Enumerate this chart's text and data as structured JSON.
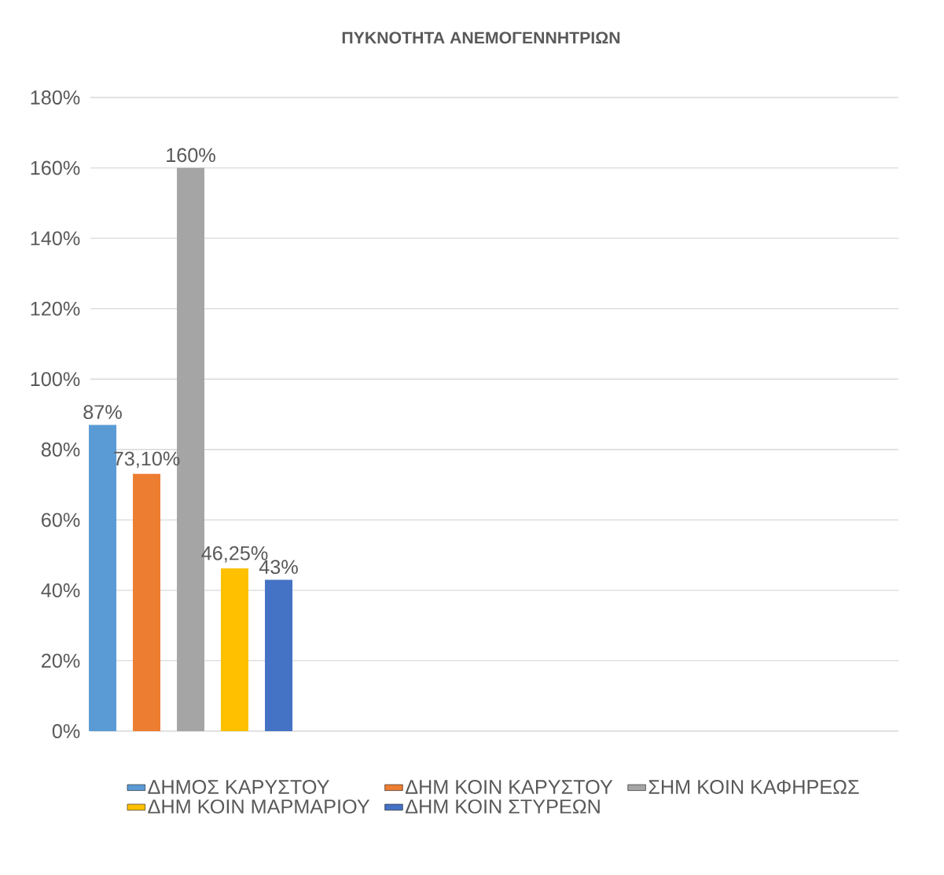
{
  "chart_data": {
    "type": "bar",
    "title": "ΠΥΚΝΟΤΗΤΑ ΑΝΕΜΟΓΕΝΝΗΤΡΙΩΝ",
    "categories": [
      null
    ],
    "series": [
      {
        "name": "ΔΗΜΟΣ ΚΑΡΥΣΤΟΥ",
        "color": "#5b9bd5",
        "values": [
          87
        ],
        "value_labels": [
          "87%"
        ]
      },
      {
        "name": "ΔΗΜ ΚΟΙΝ ΚΑΡΥΣΤΟΥ",
        "color": "#ed7d31",
        "values": [
          73.1
        ],
        "value_labels": [
          "73,10%"
        ]
      },
      {
        "name": "ΣΗΜ ΚΟΙΝ ΚΑΦΗΡΕΩΣ",
        "color": "#a5a5a5",
        "values": [
          160
        ],
        "value_labels": [
          "160%"
        ]
      },
      {
        "name": "ΔΗΜ ΚΟΙΝ ΜΑΡΜΑΡΙΟΥ",
        "color": "#ffc000",
        "values": [
          46.25
        ],
        "value_labels": [
          "46,25%"
        ]
      },
      {
        "name": "ΔΗΜ ΚΟΙΝ ΣΤΥΡΕΩΝ",
        "color": "#4472c4",
        "values": [
          43
        ],
        "value_labels": [
          "43%"
        ]
      }
    ],
    "ylim": [
      0,
      180
    ],
    "yticks": [
      {
        "value": 0,
        "label": "0%"
      },
      {
        "value": 20,
        "label": "20%"
      },
      {
        "value": 40,
        "label": "40%"
      },
      {
        "value": 60,
        "label": "60%"
      },
      {
        "value": 80,
        "label": "80%"
      },
      {
        "value": 100,
        "label": "100%"
      },
      {
        "value": 120,
        "label": "120%"
      },
      {
        "value": 140,
        "label": "140%"
      },
      {
        "value": 160,
        "label": "160%"
      },
      {
        "value": 180,
        "label": "180%"
      }
    ],
    "grid": "y",
    "legend": "bottom"
  }
}
